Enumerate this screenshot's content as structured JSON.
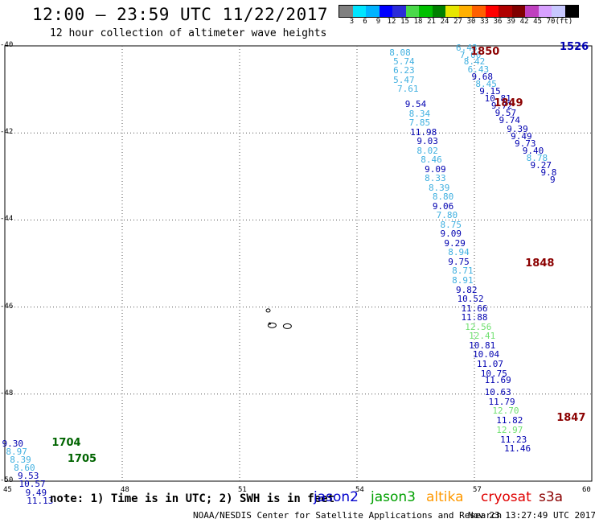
{
  "header": {
    "title": "12:00 – 23:59 UTC 11/22/2017",
    "subtitle": "12 hour collection of altimeter wave heights"
  },
  "colorbar": {
    "colors": [
      "#808080",
      "#00e5ff",
      "#00b3ff",
      "#0000ff",
      "#2b2bd9",
      "#4ad94a",
      "#00c000",
      "#008000",
      "#e6e600",
      "#ffb000",
      "#ff6000",
      "#ff0000",
      "#b00000",
      "#800000",
      "#bf40bf",
      "#d8a0ff",
      "#c8c8ff",
      "#000000"
    ],
    "labels": [
      "3",
      "6",
      "9",
      "12",
      "15",
      "18",
      "21",
      "24",
      "27",
      "30",
      "33",
      "36",
      "39",
      "42",
      "45",
      "70",
      "(ft)"
    ]
  },
  "axes": {
    "x_ticks": [
      "45",
      "48",
      "51",
      "54",
      "57",
      "60"
    ],
    "y_ticks": [
      "-40",
      "-42",
      "-44",
      "-46",
      "-48",
      "-50"
    ]
  },
  "chart_data": {
    "type": "scatter",
    "xlim": [
      45,
      60
    ],
    "ylim": [
      -50,
      -40
    ],
    "grid": true,
    "passes": [
      {
        "label": "1526",
        "lon": 59.9,
        "lat": -40.03,
        "color": "#0000b0"
      },
      {
        "label": "1850",
        "lon": 56.9,
        "lat": -40.15,
        "color": "#8b0000"
      },
      {
        "label": "1849",
        "lon": 57.5,
        "lat": -41.33,
        "color": "#8b0000"
      },
      {
        "label": "1848",
        "lon": 58.3,
        "lat": -45.0,
        "color": "#8b0000"
      },
      {
        "label": "1847",
        "lon": 59.1,
        "lat": -48.55,
        "color": "#8b0000"
      },
      {
        "label": "1704",
        "lon": 46.2,
        "lat": -49.14,
        "color": "#006400"
      },
      {
        "label": "1705",
        "lon": 46.6,
        "lat": -49.5,
        "color": "#006400"
      }
    ],
    "points": [
      {
        "v": "8.08",
        "lon": 55.1,
        "lat": -40.15,
        "c": "#40b0e0"
      },
      {
        "v": "5.74",
        "lon": 55.2,
        "lat": -40.36,
        "c": "#40b0e0"
      },
      {
        "v": "6.23",
        "lon": 55.2,
        "lat": -40.56,
        "c": "#40b0e0"
      },
      {
        "v": "5.47",
        "lon": 55.2,
        "lat": -40.77,
        "c": "#40b0e0"
      },
      {
        "v": "7.61",
        "lon": 55.3,
        "lat": -40.98,
        "c": "#40b0e0"
      },
      {
        "v": "9.54",
        "lon": 55.5,
        "lat": -41.33,
        "c": "#0000b0"
      },
      {
        "v": "8.34",
        "lon": 55.6,
        "lat": -41.55,
        "c": "#40b0e0"
      },
      {
        "v": "7.85",
        "lon": 55.6,
        "lat": -41.75,
        "c": "#40b0e0"
      },
      {
        "v": "11.98",
        "lon": 55.7,
        "lat": -41.97,
        "c": "#0000b0"
      },
      {
        "v": "9.03",
        "lon": 55.8,
        "lat": -42.18,
        "c": "#0000b0"
      },
      {
        "v": "8.02",
        "lon": 55.8,
        "lat": -42.4,
        "c": "#40b0e0"
      },
      {
        "v": "8.46",
        "lon": 55.9,
        "lat": -42.6,
        "c": "#40b0e0"
      },
      {
        "v": "9.09",
        "lon": 56.0,
        "lat": -42.82,
        "c": "#0000b0"
      },
      {
        "v": "8.33",
        "lon": 56.0,
        "lat": -43.03,
        "c": "#40b0e0"
      },
      {
        "v": "8.39",
        "lon": 56.1,
        "lat": -43.25,
        "c": "#40b0e0"
      },
      {
        "v": "8.80",
        "lon": 56.2,
        "lat": -43.45,
        "c": "#40b0e0"
      },
      {
        "v": "9.06",
        "lon": 56.2,
        "lat": -43.67,
        "c": "#0000b0"
      },
      {
        "v": "7.80",
        "lon": 56.3,
        "lat": -43.88,
        "c": "#40b0e0"
      },
      {
        "v": "8.75",
        "lon": 56.4,
        "lat": -44.1,
        "c": "#40b0e0"
      },
      {
        "v": "9.09",
        "lon": 56.4,
        "lat": -44.3,
        "c": "#0000b0"
      },
      {
        "v": "9.29",
        "lon": 56.5,
        "lat": -44.52,
        "c": "#0000b0"
      },
      {
        "v": "8.94",
        "lon": 56.6,
        "lat": -44.73,
        "c": "#40b0e0"
      },
      {
        "v": "9.75",
        "lon": 56.6,
        "lat": -44.95,
        "c": "#0000b0"
      },
      {
        "v": "8.71",
        "lon": 56.7,
        "lat": -45.16,
        "c": "#40b0e0"
      },
      {
        "v": "8.91",
        "lon": 56.7,
        "lat": -45.38,
        "c": "#40b0e0"
      },
      {
        "v": "9.82",
        "lon": 56.8,
        "lat": -45.6,
        "c": "#0000b0"
      },
      {
        "v": "10.52",
        "lon": 56.9,
        "lat": -45.8,
        "c": "#0000b0"
      },
      {
        "v": "11.66",
        "lon": 57.0,
        "lat": -46.02,
        "c": "#0000b0"
      },
      {
        "v": "11.88",
        "lon": 57.0,
        "lat": -46.23,
        "c": "#0000b0"
      },
      {
        "v": "12.56",
        "lon": 57.1,
        "lat": -46.45,
        "c": "#70e070"
      },
      {
        "v": "12.41",
        "lon": 57.2,
        "lat": -46.66,
        "c": "#70e070"
      },
      {
        "v": "10.81",
        "lon": 57.2,
        "lat": -46.88,
        "c": "#0000b0"
      },
      {
        "v": "10.04",
        "lon": 57.3,
        "lat": -47.08,
        "c": "#0000b0"
      },
      {
        "v": "11.07",
        "lon": 57.4,
        "lat": -47.3,
        "c": "#0000b0"
      },
      {
        "v": "10.75",
        "lon": 57.5,
        "lat": -47.52,
        "c": "#0000b0"
      },
      {
        "v": "11.69",
        "lon": 57.6,
        "lat": -47.67,
        "c": "#0000b0"
      },
      {
        "v": "10.63",
        "lon": 57.6,
        "lat": -47.94,
        "c": "#0000b0"
      },
      {
        "v": "11.79",
        "lon": 57.7,
        "lat": -48.17,
        "c": "#0000b0"
      },
      {
        "v": "12.70",
        "lon": 57.8,
        "lat": -48.38,
        "c": "#70e070"
      },
      {
        "v": "11.82",
        "lon": 57.9,
        "lat": -48.6,
        "c": "#0000b0"
      },
      {
        "v": "12.97",
        "lon": 57.9,
        "lat": -48.82,
        "c": "#70e070"
      },
      {
        "v": "11.23",
        "lon": 58.0,
        "lat": -49.03,
        "c": "#0000b0"
      },
      {
        "v": "11.46",
        "lon": 58.1,
        "lat": -49.25,
        "c": "#0000b0"
      },
      {
        "v": "6.48",
        "lon": 56.8,
        "lat": -40.03,
        "c": "#40b0e0"
      },
      {
        "v": "7.00",
        "lon": 56.9,
        "lat": -40.2,
        "c": "#40b0e0"
      },
      {
        "v": "8.42",
        "lon": 57.0,
        "lat": -40.36,
        "c": "#40b0e0"
      },
      {
        "v": "6.43",
        "lon": 57.1,
        "lat": -40.53,
        "c": "#40b0e0"
      },
      {
        "v": "9.68",
        "lon": 57.2,
        "lat": -40.7,
        "c": "#0000b0"
      },
      {
        "v": "8.45",
        "lon": 57.3,
        "lat": -40.86,
        "c": "#40b0e0"
      },
      {
        "v": "9.15",
        "lon": 57.4,
        "lat": -41.03,
        "c": "#0000b0"
      },
      {
        "v": "10.81",
        "lon": 57.6,
        "lat": -41.2,
        "c": "#0000b0"
      },
      {
        "v": "9.72",
        "lon": 57.7,
        "lat": -41.36,
        "c": "#0000b0"
      },
      {
        "v": "9.57",
        "lon": 57.8,
        "lat": -41.53,
        "c": "#0000b0"
      },
      {
        "v": "9.74",
        "lon": 57.9,
        "lat": -41.7,
        "c": "#0000b0"
      },
      {
        "v": "9.39",
        "lon": 58.1,
        "lat": -41.9,
        "c": "#0000b0"
      },
      {
        "v": "9.49",
        "lon": 58.2,
        "lat": -42.07,
        "c": "#0000b0"
      },
      {
        "v": "9.73",
        "lon": 58.3,
        "lat": -42.23,
        "c": "#0000b0"
      },
      {
        "v": "9.40",
        "lon": 58.5,
        "lat": -42.4,
        "c": "#0000b0"
      },
      {
        "v": "8.78",
        "lon": 58.6,
        "lat": -42.57,
        "c": "#40b0e0"
      },
      {
        "v": "9.27",
        "lon": 58.7,
        "lat": -42.73,
        "c": "#0000b0"
      },
      {
        "v": "9.8",
        "lon": 58.9,
        "lat": -42.9,
        "c": "#0000b0"
      },
      {
        "v": "9",
        "lon": 59.0,
        "lat": -43.07,
        "c": "#0000b0"
      },
      {
        "v": "9.30",
        "lon": 45.2,
        "lat": -49.14,
        "c": "#0000b0"
      },
      {
        "v": "8.97",
        "lon": 45.3,
        "lat": -49.32,
        "c": "#40b0e0"
      },
      {
        "v": "8.39",
        "lon": 45.4,
        "lat": -49.5,
        "c": "#40b0e0"
      },
      {
        "v": "8.60",
        "lon": 45.5,
        "lat": -49.68,
        "c": "#40b0e0"
      },
      {
        "v": "9.53",
        "lon": 45.6,
        "lat": -49.87,
        "c": "#0000b0"
      },
      {
        "v": "10.57",
        "lon": 45.7,
        "lat": -50.06,
        "c": "#0000b0"
      },
      {
        "v": "9.49",
        "lon": 45.8,
        "lat": -50.25,
        "c": "#0000b0"
      },
      {
        "v": "11.13",
        "lon": 45.9,
        "lat": -50.44,
        "c": "#0000b0"
      }
    ]
  },
  "footer": {
    "note": "note: 1) Time is in UTC; 2) SWH is in feet",
    "legend": [
      {
        "name": "jason2",
        "color": "#0000cc"
      },
      {
        "name": "jason3",
        "color": "#00a000"
      },
      {
        "name": "altika",
        "color": "#ff9900"
      },
      {
        "name": "cryosat",
        "color": "#e00000"
      },
      {
        "name": "s3a",
        "color": "#8b0000"
      }
    ],
    "credit": "NOAA/NESDIS Center for Satellite Applications and Research",
    "timestamp": "Nov 23 13:27:49 UTC 2017"
  }
}
